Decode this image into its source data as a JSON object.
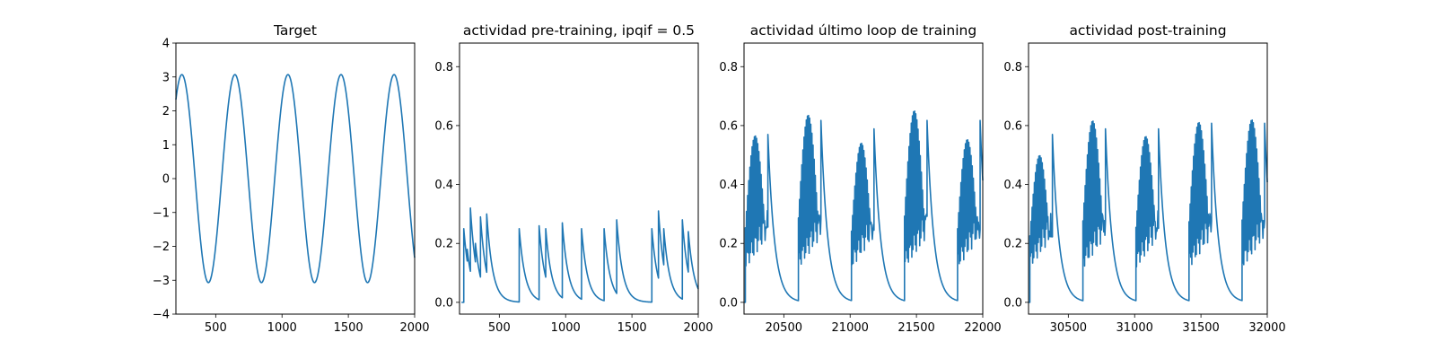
{
  "style": {
    "line_color": "#1f77b4",
    "background": "#ffffff"
  },
  "chart_data": [
    {
      "type": "line",
      "title": "Target",
      "xlim": [
        200,
        2000
      ],
      "ylim": [
        -4,
        4
      ],
      "xticks": [
        500,
        1000,
        1500,
        2000
      ],
      "yticks": [
        -4,
        -3,
        -2,
        -1,
        0,
        1,
        2,
        3,
        4
      ],
      "xtick_labels": [
        "500",
        "1000",
        "1500",
        "2000"
      ],
      "ytick_labels": [
        "−4",
        "−3",
        "−2",
        "−1",
        "0",
        "1",
        "2",
        "3",
        "4"
      ],
      "series": [
        {
          "kind": "sine",
          "amplitude": 3.07,
          "period": 400,
          "first_peak_x": 245,
          "x_start": 200,
          "x_end": 2000
        }
      ]
    },
    {
      "type": "line",
      "title": "actividad pre-training, ipqif = 0.5",
      "xlim": [
        200,
        2000
      ],
      "ylim": [
        -0.04,
        0.88
      ],
      "xticks": [
        500,
        1000,
        1500,
        2000
      ],
      "yticks": [
        0.0,
        0.2,
        0.4,
        0.6,
        0.8
      ],
      "xtick_labels": [
        "500",
        "1000",
        "1500",
        "2000"
      ],
      "ytick_labels": [
        "0.0",
        "0.2",
        "0.4",
        "0.6",
        "0.8"
      ],
      "series": [
        {
          "kind": "spike_decay",
          "x_start": 215,
          "x_end": 2000,
          "start_value": 0.0,
          "decay_tau": 45,
          "spikes": [
            [
              232,
              0.25
            ],
            [
              258,
              0.18
            ],
            [
              282,
              0.32
            ],
            [
              320,
              0.2
            ],
            [
              358,
              0.29
            ],
            [
              405,
              0.3
            ],
            [
              650,
              0.25
            ],
            [
              800,
              0.26
            ],
            [
              850,
              0.25
            ],
            [
              975,
              0.27
            ],
            [
              1120,
              0.25
            ],
            [
              1290,
              0.25
            ],
            [
              1385,
              0.28
            ],
            [
              1650,
              0.25
            ],
            [
              1700,
              0.31
            ],
            [
              1740,
              0.25
            ],
            [
              1880,
              0.28
            ],
            [
              1925,
              0.24
            ]
          ]
        }
      ]
    },
    {
      "type": "line",
      "title": "actividad último loop de training",
      "xlim": [
        20200,
        22000
      ],
      "ylim": [
        -0.04,
        0.88
      ],
      "xticks": [
        20500,
        21000,
        21500,
        22000
      ],
      "yticks": [
        0.0,
        0.2,
        0.4,
        0.6,
        0.8
      ],
      "xtick_labels": [
        "20500",
        "21000",
        "21500",
        "22000"
      ],
      "ytick_labels": [
        "0.0",
        "0.2",
        "0.4",
        "0.6",
        "0.8"
      ],
      "series": [
        {
          "kind": "burst_decay",
          "x_start": 20200,
          "x_end": 22000,
          "start_value": 0.0,
          "decay_tau": 50,
          "burst_start": 20210,
          "period": 400,
          "burst_length": 170,
          "spike_interval": 8.5,
          "peak_values": [
            0.6,
            0.65,
            0.62,
            0.65,
            0.65
          ],
          "burst_floor": 0.3
        }
      ]
    },
    {
      "type": "line",
      "title": "actividad post-training",
      "xlim": [
        30200,
        32000
      ],
      "ylim": [
        -0.04,
        0.88
      ],
      "xticks": [
        30500,
        31000,
        31500,
        32000
      ],
      "yticks": [
        0.0,
        0.2,
        0.4,
        0.6,
        0.8
      ],
      "xtick_labels": [
        "30500",
        "31000",
        "31500",
        "32000"
      ],
      "ytick_labels": [
        "0.0",
        "0.2",
        "0.4",
        "0.6",
        "0.8"
      ],
      "series": [
        {
          "kind": "burst_decay",
          "x_start": 30200,
          "x_end": 32000,
          "start_value": 0.0,
          "decay_tau": 50,
          "burst_start": 30210,
          "period": 400,
          "burst_length": 170,
          "spike_interval": 8.5,
          "peak_values": [
            0.6,
            0.62,
            0.62,
            0.64,
            0.64
          ],
          "burst_floor": 0.3
        }
      ]
    }
  ]
}
